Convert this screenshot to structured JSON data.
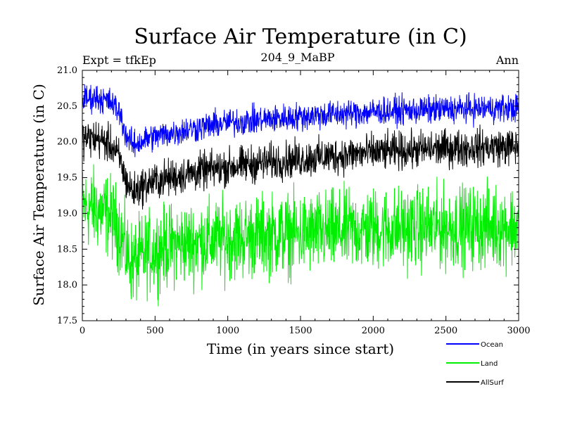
{
  "chart_data": {
    "type": "line",
    "title": "Surface Air Temperature (in C)",
    "subtitle": "204_9_MaBP",
    "left_note": "Expt = tfkEp",
    "right_note": "Ann",
    "xlabel": "Time (in years since start)",
    "ylabel": "Surface Air Temperature (in C)",
    "xlim": [
      0,
      3000
    ],
    "ylim": [
      17.5,
      21.0
    ],
    "x_ticks": [
      0,
      500,
      1000,
      1500,
      2000,
      2500,
      3000
    ],
    "y_ticks": [
      "17.5",
      "18.0",
      "18.5",
      "19.0",
      "19.5",
      "20.0",
      "20.5",
      "21.0"
    ],
    "grid": false,
    "legend_position": "bottom-right, outside plot",
    "series": [
      {
        "name": "Ocean",
        "color": "#0000ff",
        "noise_amplitude": 0.12,
        "x": [
          0,
          100,
          200,
          260,
          300,
          350,
          450,
          600,
          800,
          1000,
          1300,
          1600,
          2000,
          2400,
          2800,
          3000
        ],
        "values": [
          20.6,
          20.62,
          20.55,
          20.4,
          20.1,
          19.95,
          20.05,
          20.12,
          20.2,
          20.27,
          20.32,
          20.37,
          20.42,
          20.45,
          20.47,
          20.47
        ]
      },
      {
        "name": "Land",
        "color": "#00ee00",
        "noise_amplitude": 0.35,
        "x": [
          0,
          100,
          200,
          260,
          300,
          350,
          450,
          600,
          800,
          1000,
          1300,
          1600,
          2000,
          2400,
          2800,
          3000
        ],
        "values": [
          19.1,
          19.05,
          18.95,
          18.75,
          18.45,
          18.3,
          18.45,
          18.55,
          18.6,
          18.65,
          18.7,
          18.72,
          18.78,
          18.8,
          18.82,
          18.82
        ]
      },
      {
        "name": "AllSurf",
        "color": "#000000",
        "noise_amplitude": 0.16,
        "x": [
          0,
          100,
          200,
          260,
          300,
          350,
          450,
          600,
          800,
          1000,
          1300,
          1600,
          2000,
          2400,
          2800,
          3000
        ],
        "values": [
          20.05,
          20.05,
          19.95,
          19.75,
          19.45,
          19.3,
          19.42,
          19.5,
          19.58,
          19.65,
          19.72,
          19.78,
          19.85,
          19.9,
          19.93,
          19.93
        ]
      }
    ]
  }
}
